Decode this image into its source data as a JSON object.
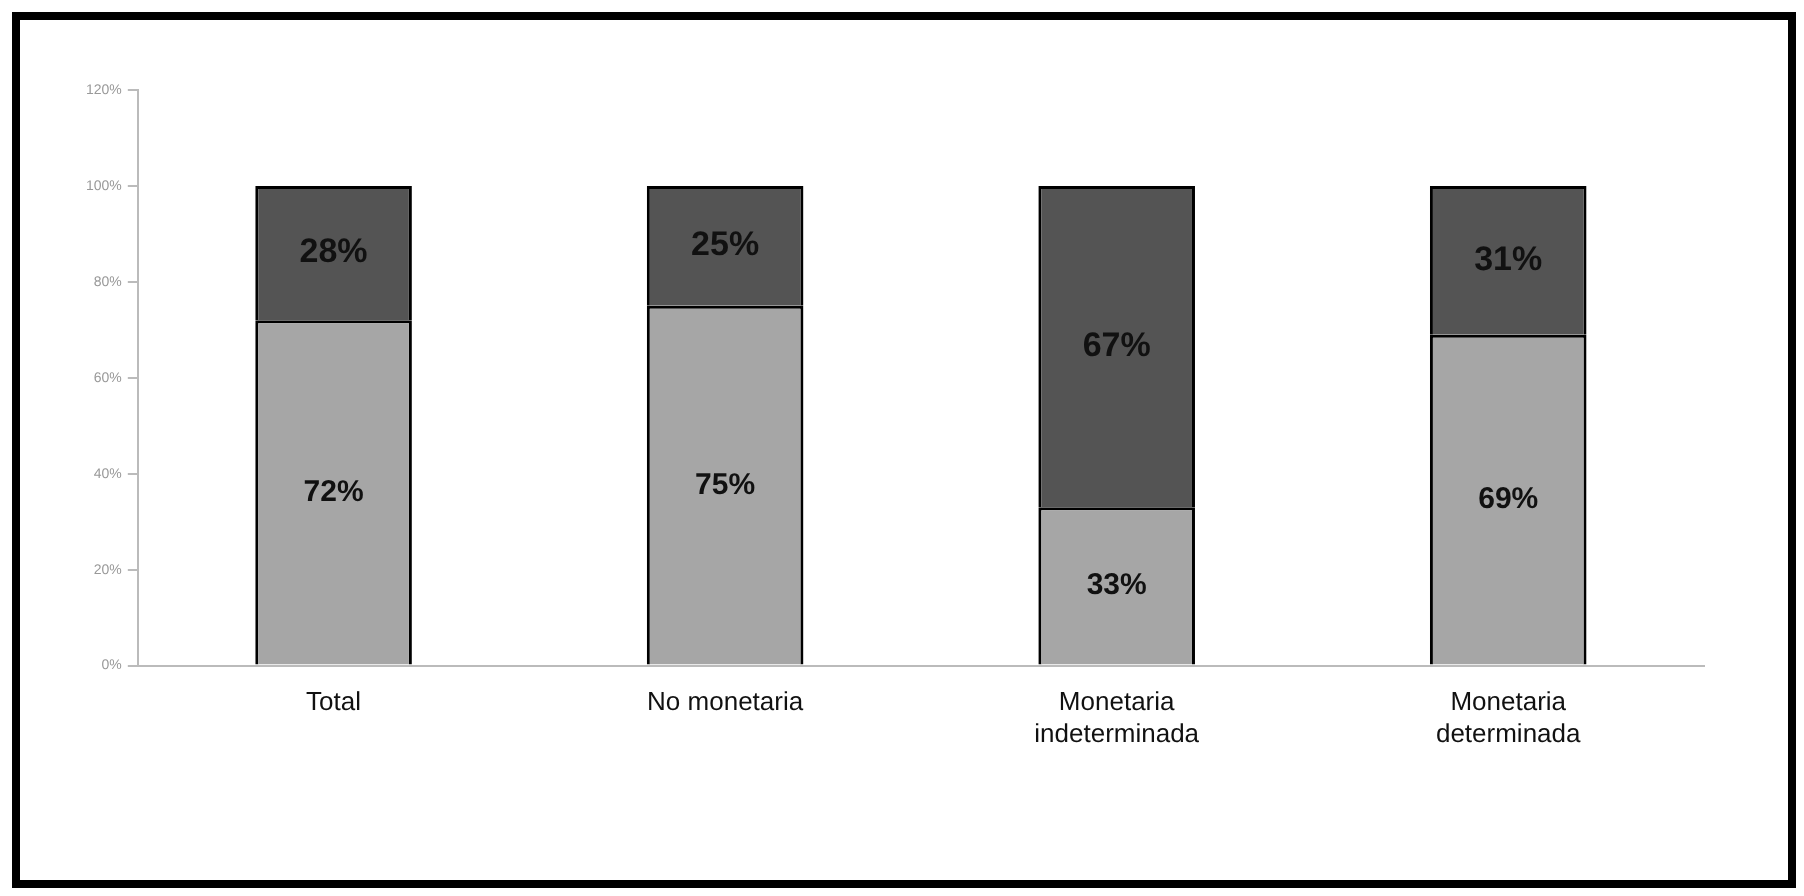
{
  "chart_data": {
    "type": "bar",
    "stacked": true,
    "categories": [
      "Total",
      "No monetaria",
      "Monetaria indeterminada",
      "Monetaria determinada"
    ],
    "series": [
      {
        "color": "#a6a6a6",
        "values": [
          72,
          75,
          33,
          69
        ],
        "value_labels": [
          "72%",
          "75%",
          "33%",
          "69%"
        ]
      },
      {
        "color": "#545454",
        "values": [
          28,
          25,
          67,
          31
        ],
        "value_labels": [
          "28%",
          "25%",
          "67%",
          "31%"
        ]
      }
    ],
    "ylim": [
      0,
      120
    ],
    "yticks": [
      {
        "value": 0,
        "label": "0%"
      },
      {
        "value": 20,
        "label": "20%"
      },
      {
        "value": 40,
        "label": "40%"
      },
      {
        "value": 60,
        "label": "60%"
      },
      {
        "value": 80,
        "label": "80%"
      },
      {
        "value": 100,
        "label": "100%"
      },
      {
        "value": 120,
        "label": "120%"
      }
    ],
    "grid": false,
    "legend": false
  }
}
